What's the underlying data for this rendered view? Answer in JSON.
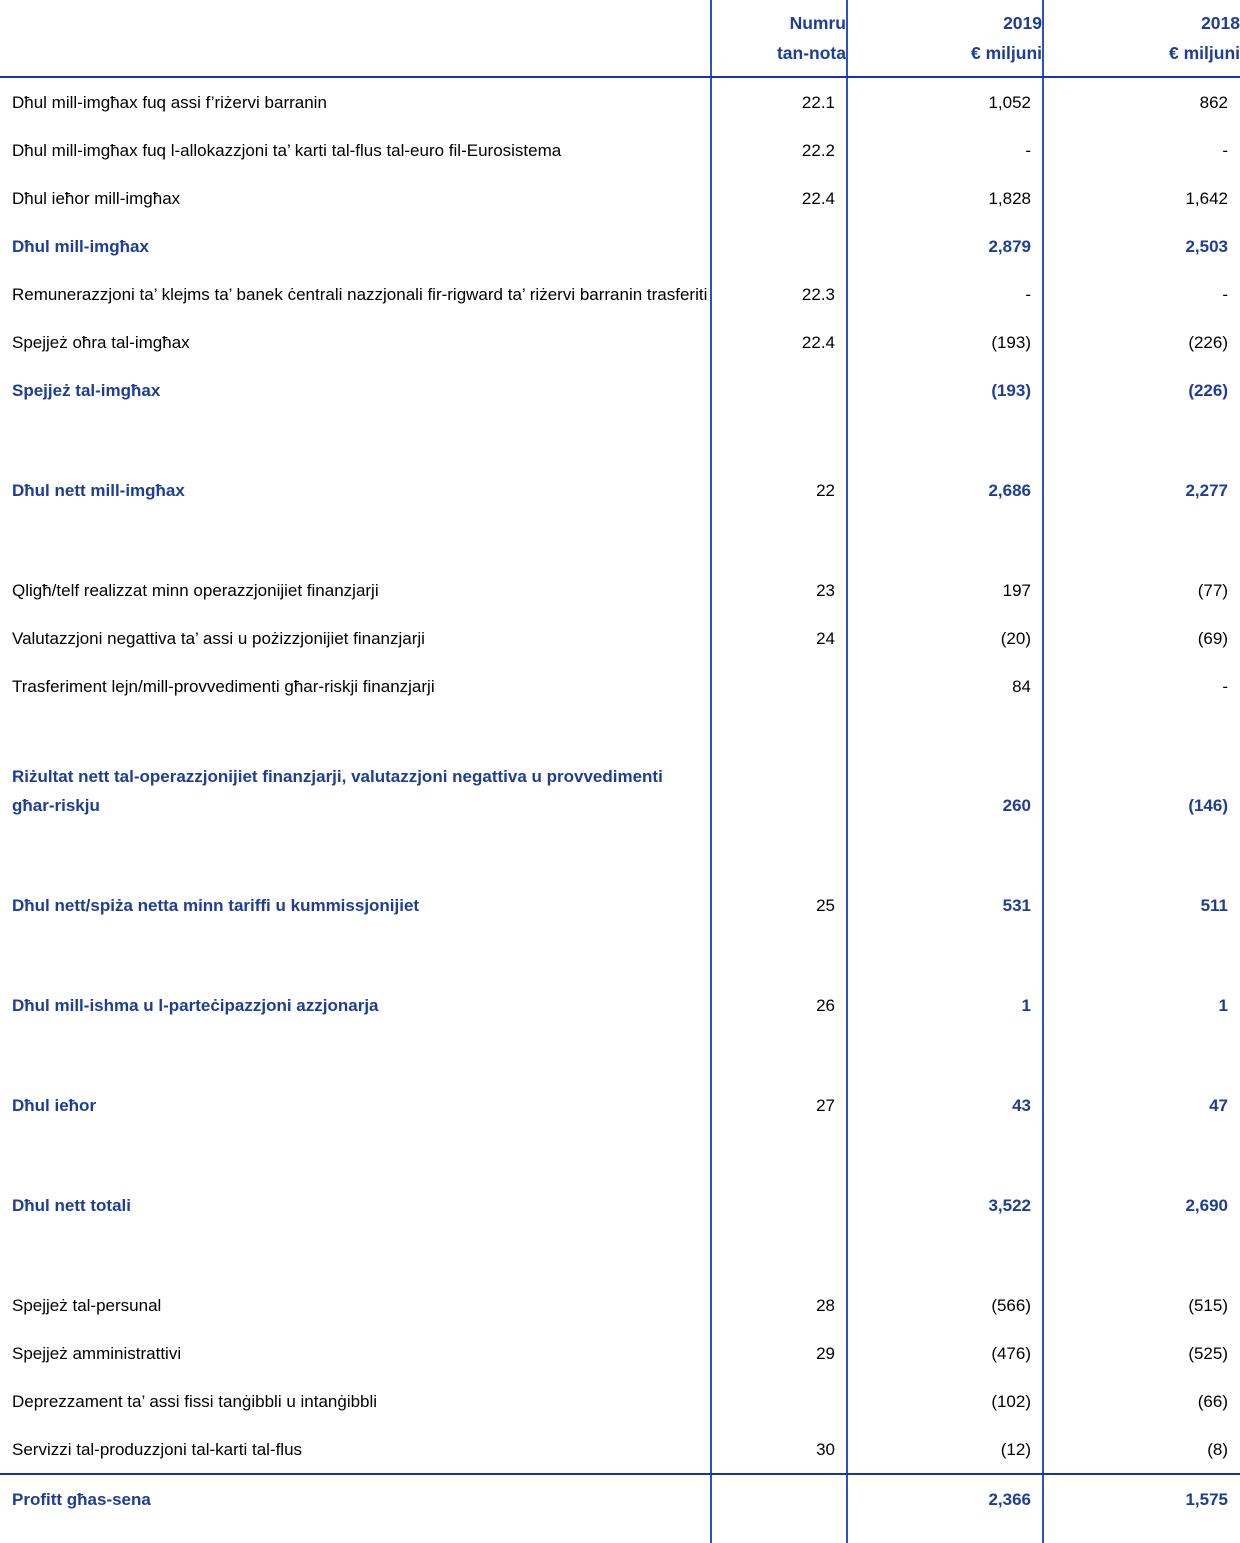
{
  "table": {
    "header": {
      "note_l1": "Numru",
      "note_l2": "tan-nota",
      "y2019_l1": "2019",
      "y2019_l2": "€ miljuni",
      "y2018_l1": "2018",
      "y2018_l2": "€ miljuni"
    },
    "colors": {
      "text_blue": "#1E3D98",
      "line_blue": "#1535AF",
      "vline_blue": "#2A52C4"
    },
    "rows": [
      {
        "label": "Dħul mill-imgħax fuq assi f’riżervi barranin",
        "note": "22.1",
        "v2019": "1,052",
        "v2018": "862",
        "bold": false,
        "blank_before": 0,
        "rule_before": false
      },
      {
        "label": "Dħul mill-imgħax fuq l-allokazzjoni ta’ karti tal-flus tal-euro fil-Eurosistema",
        "note": "22.2",
        "v2019": "-",
        "v2018": "-",
        "bold": false,
        "blank_before": 0,
        "rule_before": false
      },
      {
        "label": "Dħul ieħor mill-imgħax",
        "note": "22.4",
        "v2019": "1,828",
        "v2018": "1,642",
        "bold": false,
        "blank_before": 0,
        "rule_before": false
      },
      {
        "label": "Dħul mill-imgħax",
        "note": "",
        "v2019": "2,879",
        "v2018": "2,503",
        "bold": true,
        "blank_before": 0,
        "rule_before": false
      },
      {
        "label": "Remunerazzjoni ta’ klejms ta’ banek ċentrali nazzjonali fir-rigward ta’ riżervi barranin trasferiti",
        "note": "22.3",
        "v2019": "-",
        "v2018": "-",
        "bold": false,
        "blank_before": 0,
        "rule_before": false
      },
      {
        "label": "Spejjeż oħra tal-imgħax",
        "note": "22.4",
        "v2019": "(193)",
        "v2018": "(226)",
        "bold": false,
        "blank_before": 0,
        "rule_before": false
      },
      {
        "label": "Spejjeż tal-imgħax",
        "note": "",
        "v2019": "(193)",
        "v2018": "(226)",
        "bold": true,
        "blank_before": 0,
        "rule_before": false
      },
      {
        "label": "Dħul nett mill-imgħax",
        "note": "22",
        "v2019": "2,686",
        "v2018": "2,277",
        "bold": true,
        "blank_before": 1,
        "rule_before": false
      },
      {
        "label": "Qligħ/telf realizzat minn operazzjonijiet finanzjarji",
        "note": "23",
        "v2019": "197",
        "v2018": "(77)",
        "bold": false,
        "blank_before": 1,
        "rule_before": false
      },
      {
        "label": "Valutazzjoni negattiva ta’ assi u pożizzjonijiet finanzjarji",
        "note": "24",
        "v2019": "(20)",
        "v2018": "(69)",
        "bold": false,
        "blank_before": 0,
        "rule_before": false
      },
      {
        "label": "Trasferiment lejn/mill-provvedimenti għar-riskji finanzjarji",
        "note": "",
        "v2019": "84",
        "v2018": "-",
        "bold": false,
        "blank_before": 0,
        "rule_before": false
      },
      {
        "label": "Riżultat nett tal-operazzjonijiet finanzjarji, valutazzjoni negattiva u provvedimenti għar-riskju",
        "note": "",
        "v2019": "260",
        "v2018": "(146)",
        "bold": true,
        "blank_before": 1,
        "rule_before": false
      },
      {
        "label": "Dħul nett/spiża netta minn tariffi u kummissjonijiet",
        "note": "25",
        "v2019": "531",
        "v2018": "511",
        "bold": true,
        "blank_before": 1,
        "rule_before": false
      },
      {
        "label": "Dħul mill-ishma u l-parteċipazzjoni azzjonarja",
        "note": "26",
        "v2019": "1",
        "v2018": "1",
        "bold": true,
        "blank_before": 1,
        "rule_before": false
      },
      {
        "label": "Dħul ieħor",
        "note": "27",
        "v2019": "43",
        "v2018": "47",
        "bold": true,
        "blank_before": 1,
        "rule_before": false
      },
      {
        "label": "Dħul nett totali",
        "note": "",
        "v2019": "3,522",
        "v2018": "2,690",
        "bold": true,
        "blank_before": 1,
        "rule_before": false
      },
      {
        "label": "Spejjeż tal-persunal",
        "note": "28",
        "v2019": "(566)",
        "v2018": "(515)",
        "bold": false,
        "blank_before": 1,
        "rule_before": false
      },
      {
        "label": "Spejjeż amministrattivi",
        "note": "29",
        "v2019": "(476)",
        "v2018": "(525)",
        "bold": false,
        "blank_before": 0,
        "rule_before": false
      },
      {
        "label": "Deprezzament ta’ assi fissi tanġibbli u intanġibbli",
        "note": "",
        "v2019": "(102)",
        "v2018": "(66)",
        "bold": false,
        "blank_before": 0,
        "rule_before": false
      },
      {
        "label": "Servizzi tal-produzzjoni tal-karti tal-flus",
        "note": "30",
        "v2019": "(12)",
        "v2018": "(8)",
        "bold": false,
        "blank_before": 0,
        "rule_before": false
      },
      {
        "label": "Profitt għas-sena",
        "note": "",
        "v2019": "2,366",
        "v2018": "1,575",
        "bold": true,
        "blank_before": 0,
        "rule_before": true
      }
    ]
  }
}
